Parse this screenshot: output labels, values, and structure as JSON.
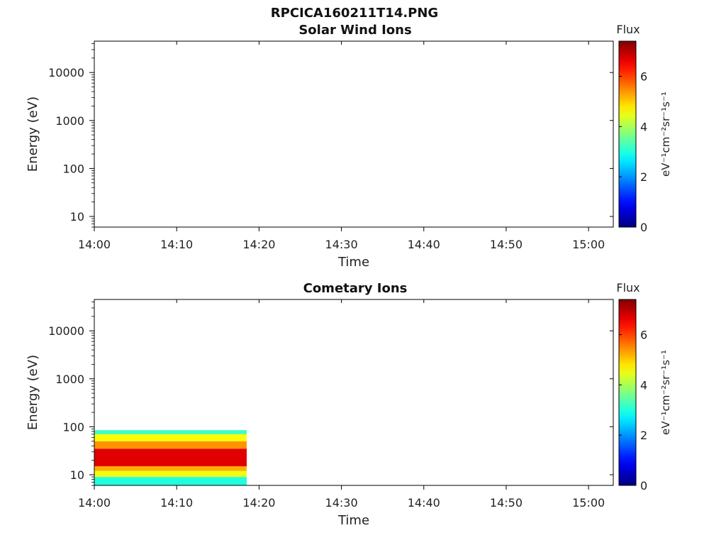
{
  "figure_title": "RPCICA160211T14.PNG",
  "chart_data": [
    {
      "type": "heatmap",
      "title": "Solar Wind Ions",
      "xlabel": "Time",
      "ylabel": "Energy (eV)",
      "y_scale": "log",
      "ylim": [
        6,
        45000
      ],
      "y_ticks": [
        10,
        100,
        1000,
        10000
      ],
      "y_tick_labels": [
        "10",
        "100",
        "1000",
        "10000"
      ],
      "xlim": [
        "14:00",
        "15:03"
      ],
      "x_ticks": [
        "14:00",
        "14:10",
        "14:20",
        "14:30",
        "14:40",
        "14:50",
        "15:00"
      ],
      "colorbar": {
        "label": "Flux",
        "units": "eV⁻¹cm⁻²sr⁻¹s⁻¹",
        "range": [
          0,
          7.4
        ],
        "ticks": [
          0,
          2,
          4,
          6
        ],
        "colormap": "jet"
      },
      "data_bands": []
    },
    {
      "type": "heatmap",
      "title": "Cometary Ions",
      "xlabel": "Time",
      "ylabel": "Energy (eV)",
      "y_scale": "log",
      "ylim": [
        6,
        45000
      ],
      "y_ticks": [
        10,
        100,
        1000,
        10000
      ],
      "y_tick_labels": [
        "10",
        "100",
        "1000",
        "10000"
      ],
      "xlim": [
        "14:00",
        "15:03"
      ],
      "x_ticks": [
        "14:00",
        "14:10",
        "14:20",
        "14:30",
        "14:40",
        "14:50",
        "15:00"
      ],
      "colorbar": {
        "label": "Flux",
        "units": "eV⁻¹cm⁻²sr⁻¹s⁻¹",
        "range": [
          0,
          7.4
        ],
        "ticks": [
          0,
          2,
          4,
          6
        ],
        "colormap": "jet"
      },
      "data_bands": [
        {
          "t_start": "14:00",
          "t_end": "14:18.5",
          "e_low": 6,
          "e_high": 9,
          "flux": 3.0
        },
        {
          "t_start": "14:00",
          "t_end": "14:18.5",
          "e_low": 9,
          "e_high": 12,
          "flux": 4.5
        },
        {
          "t_start": "14:00",
          "t_end": "14:18.5",
          "e_low": 12,
          "e_high": 15,
          "flux": 5.2
        },
        {
          "t_start": "14:00",
          "t_end": "14:18.5",
          "e_low": 15,
          "e_high": 35,
          "flux": 6.7
        },
        {
          "t_start": "14:00",
          "t_end": "14:18.5",
          "e_low": 35,
          "e_high": 50,
          "flux": 5.4
        },
        {
          "t_start": "14:00",
          "t_end": "14:18.5",
          "e_low": 50,
          "e_high": 70,
          "flux": 4.6
        },
        {
          "t_start": "14:00",
          "t_end": "14:18.5",
          "e_low": 70,
          "e_high": 85,
          "flux": 3.2
        }
      ]
    }
  ]
}
